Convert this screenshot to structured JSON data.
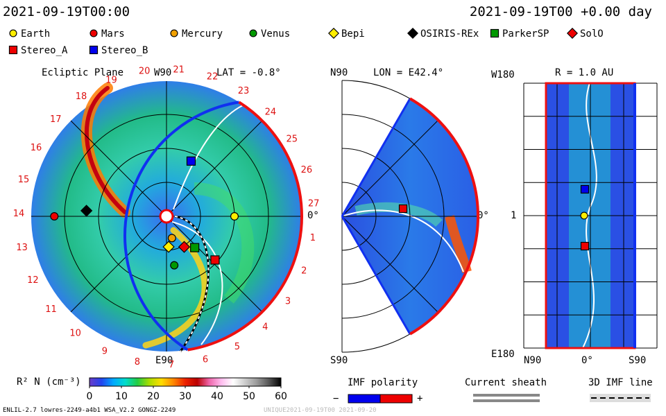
{
  "header": {
    "datetime_left": "2021-09-19T00:00",
    "datetime_right": "2021-09-19T00 +0.00 day"
  },
  "legend_bodies": [
    {
      "name": "Earth",
      "shape": "circle",
      "color": "#ffee00"
    },
    {
      "name": "Mars",
      "shape": "circle",
      "color": "#ee0000"
    },
    {
      "name": "Mercury",
      "shape": "circle",
      "color": "#f0a000"
    },
    {
      "name": "Venus",
      "shape": "circle",
      "color": "#009900"
    },
    {
      "name": "Bepi",
      "shape": "diamond",
      "color": "#ffee00"
    },
    {
      "name": "OSIRIS-REx",
      "shape": "diamond",
      "color": "#000000"
    },
    {
      "name": "ParkerSP",
      "shape": "square",
      "color": "#009900"
    },
    {
      "name": "SolO",
      "shape": "diamond",
      "color": "#ee0000"
    },
    {
      "name": "Stereo_A",
      "shape": "square",
      "color": "#ee0000"
    },
    {
      "name": "Stereo_B",
      "shape": "square",
      "color": "#0000ee"
    }
  ],
  "panels": {
    "ecliptic": {
      "title": "Ecliptic Plane",
      "lat": "LAT = -0.8°",
      "top_label": "W90",
      "bottom_label": "E90",
      "right_label": "0°",
      "rotation_numbers": [
        "20",
        "21",
        "22",
        "23",
        "24",
        "25",
        "26",
        "27",
        "1",
        "2",
        "3",
        "4",
        "5",
        "6",
        "7",
        "8",
        "9",
        "10",
        "11",
        "12",
        "13",
        "14",
        "15",
        "16",
        "17",
        "18",
        "19"
      ]
    },
    "meridional": {
      "lon": "LON = E42.4°",
      "top_label": "N90",
      "bottom_label": "S90",
      "right_label": "0°"
    },
    "radial": {
      "title": "R = 1.0 AU",
      "top_label": "W180",
      "bottom_label": "E180",
      "left_value": "1",
      "x_labels": [
        "N90",
        "0°",
        "S90"
      ]
    }
  },
  "chart_data": {
    "type": "heatmap",
    "title": "",
    "colorbar": {
      "label": "R² N (cm⁻³)",
      "min": 0,
      "max": 60,
      "ticks": [
        "0",
        "10",
        "20",
        "30",
        "40",
        "50",
        "60"
      ],
      "colors": [
        "#6a3cc8",
        "#2244ee",
        "#00aaff",
        "#00ddcc",
        "#22cc44",
        "#aadd00",
        "#ffdd00",
        "#ff8800",
        "#ee2200",
        "#bb0000",
        "#ee66aa",
        "#ffbbee",
        "#ffffff",
        "#cccccc",
        "#999999",
        "#555555",
        "#000000"
      ]
    },
    "imf_polarity": {
      "label": "IMF polarity",
      "minus": "−",
      "plus": "+",
      "neg_color": "#0000ee",
      "pos_color": "#ee0000"
    },
    "current_sheath_label": "Current sheath",
    "imf_line_label": "3D IMF line",
    "ecliptic_positions": [
      {
        "name": "Earth",
        "r_au": 1.0,
        "angle_deg": 0
      },
      {
        "name": "Mars",
        "r_au": 1.65,
        "angle_deg": 180
      },
      {
        "name": "Mercury",
        "r_au": 0.33,
        "angle_deg": -76
      },
      {
        "name": "Venus",
        "r_au": 0.73,
        "angle_deg": -81
      },
      {
        "name": "Bepi",
        "r_au": 0.45,
        "angle_deg": -86
      },
      {
        "name": "OSIRIS-REx",
        "r_au": 1.18,
        "angle_deg": 176
      },
      {
        "name": "ParkerSP",
        "r_au": 0.62,
        "angle_deg": -48
      },
      {
        "name": "SolO",
        "r_au": 0.52,
        "angle_deg": -60
      },
      {
        "name": "Stereo_A",
        "r_au": 0.96,
        "angle_deg": -42
      },
      {
        "name": "Stereo_B",
        "r_au": 0.89,
        "angle_deg": 66
      }
    ]
  },
  "footer": {
    "left": "ENLIL-2.7 lowres-2249-a4b1 WSA_V2.2 GONGZ-2249",
    "right": "UNIQUE2021-09-19T00 2021-09-20"
  }
}
